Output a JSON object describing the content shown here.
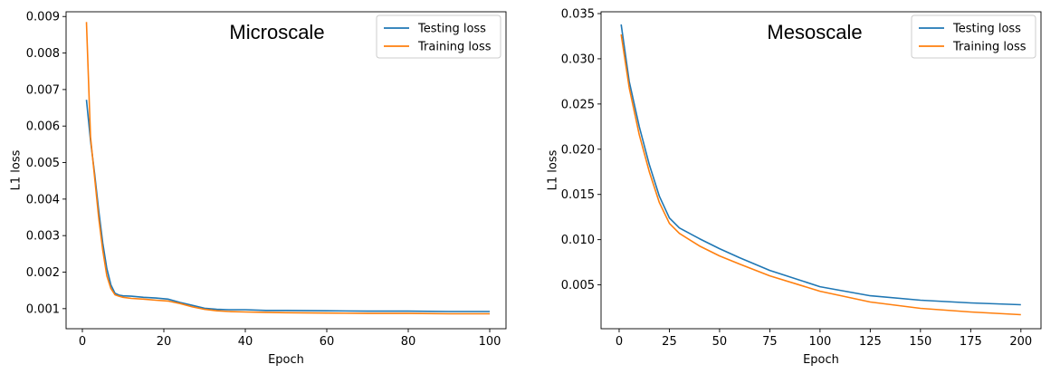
{
  "chart_data": [
    {
      "type": "line",
      "title": "Microscale",
      "xlabel": "Epoch",
      "ylabel": "L1 loss",
      "xlim": [
        -4,
        104
      ],
      "ylim": [
        0.00045,
        0.00913
      ],
      "xticks": [
        0,
        20,
        40,
        60,
        80,
        100
      ],
      "yticks": [
        0.001,
        0.002,
        0.003,
        0.004,
        0.005,
        0.006,
        0.007,
        0.008,
        0.009
      ],
      "xtick_labels": [
        "0",
        "20",
        "40",
        "60",
        "80",
        "100"
      ],
      "ytick_labels": [
        "0.001",
        "0.002",
        "0.003",
        "0.004",
        "0.005",
        "0.006",
        "0.007",
        "0.008",
        "0.009"
      ],
      "legend_position": "top-right",
      "grid": false,
      "series": [
        {
          "name": "Testing loss",
          "color": "#1f77b4",
          "x": [
            1,
            2,
            3,
            4,
            5,
            6,
            7,
            8,
            9,
            10,
            12,
            15,
            18,
            21,
            24,
            27,
            30,
            33,
            36,
            40,
            45,
            50,
            60,
            70,
            80,
            90,
            100
          ],
          "y": [
            0.00672,
            0.0056,
            0.0047,
            0.0037,
            0.0028,
            0.0021,
            0.00165,
            0.00142,
            0.00137,
            0.00135,
            0.00134,
            0.00131,
            0.00129,
            0.00126,
            0.00117,
            0.00109,
            0.00101,
            0.00098,
            0.00097,
            0.00097,
            0.00095,
            0.00095,
            0.00094,
            0.00093,
            0.00093,
            0.00092,
            0.00092
          ]
        },
        {
          "name": "Training loss",
          "color": "#ff7f0e",
          "x": [
            1,
            2,
            3,
            4,
            5,
            6,
            7,
            8,
            9,
            10,
            12,
            15,
            18,
            21,
            24,
            27,
            30,
            33,
            36,
            40,
            45,
            50,
            60,
            70,
            80,
            90,
            100
          ],
          "y": [
            0.00885,
            0.0057,
            0.0046,
            0.0035,
            0.0026,
            0.0019,
            0.00155,
            0.00138,
            0.00134,
            0.00131,
            0.00128,
            0.00126,
            0.00123,
            0.00121,
            0.00114,
            0.00105,
            0.00098,
            0.00094,
            0.00092,
            0.00091,
            0.0009,
            0.00089,
            0.00088,
            0.00087,
            0.00087,
            0.00086,
            0.00086
          ]
        }
      ]
    },
    {
      "type": "line",
      "title": "Mesoscale",
      "xlabel": "Epoch",
      "ylabel": "L1 loss",
      "xlim": [
        -9,
        210
      ],
      "ylim": [
        0.00015,
        0.0352
      ],
      "xticks": [
        0,
        25,
        50,
        75,
        100,
        125,
        150,
        175,
        200
      ],
      "yticks": [
        0.005,
        0.01,
        0.015,
        0.02,
        0.025,
        0.03,
        0.035
      ],
      "xtick_labels": [
        "0",
        "25",
        "50",
        "75",
        "100",
        "125",
        "150",
        "175",
        "200"
      ],
      "ytick_labels": [
        "0.005",
        "0.010",
        "0.015",
        "0.020",
        "0.025",
        "0.030",
        "0.035"
      ],
      "legend_position": "top-right",
      "grid": false,
      "series": [
        {
          "name": "Testing loss",
          "color": "#1f77b4",
          "x": [
            1,
            5,
            10,
            15,
            20,
            25,
            30,
            40,
            50,
            60,
            75,
            100,
            125,
            150,
            175,
            200
          ],
          "y": [
            0.0338,
            0.0275,
            0.0225,
            0.0183,
            0.0148,
            0.0124,
            0.0113,
            0.0101,
            0.009,
            0.008,
            0.0066,
            0.0048,
            0.0038,
            0.0033,
            0.003,
            0.0028
          ]
        },
        {
          "name": "Training loss",
          "color": "#ff7f0e",
          "x": [
            1,
            5,
            10,
            15,
            20,
            25,
            30,
            40,
            50,
            60,
            75,
            100,
            125,
            150,
            175,
            200
          ],
          "y": [
            0.0327,
            0.0268,
            0.0216,
            0.0175,
            0.0141,
            0.0118,
            0.0107,
            0.0093,
            0.0082,
            0.0073,
            0.006,
            0.0043,
            0.0031,
            0.0024,
            0.002,
            0.0017
          ]
        }
      ]
    }
  ]
}
